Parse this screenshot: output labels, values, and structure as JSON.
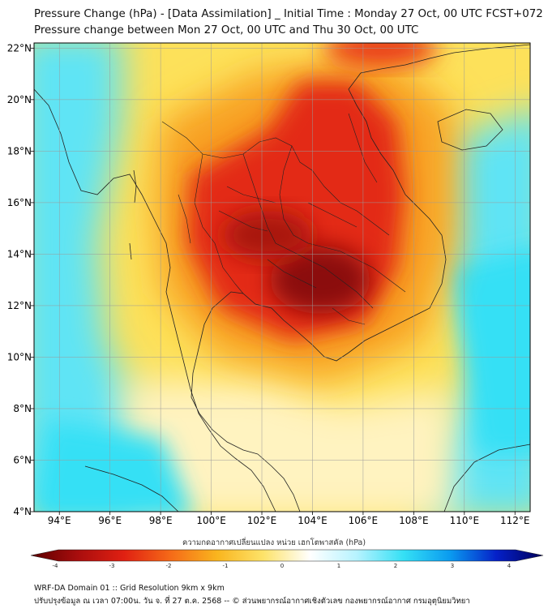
{
  "header": {
    "title": "Pressure Change (hPa) - [Data Assimilation] _ Initial Time : Monday 27 Oct, 00 UTC FCST+072",
    "subtitle": "Pressure change between Mon 27 Oct, 00 UTC and Thu 30 Oct, 00 UTC"
  },
  "map": {
    "lon_ticks": [
      "94°E",
      "96°E",
      "98°E",
      "100°E",
      "102°E",
      "104°E",
      "106°E",
      "108°E",
      "110°E",
      "112°E"
    ],
    "lon_values": [
      94,
      96,
      98,
      100,
      102,
      104,
      106,
      108,
      110,
      112
    ],
    "lat_ticks": [
      "22°N",
      "20°N",
      "18°N",
      "16°N",
      "14°N",
      "12°N",
      "10°N",
      "8°N",
      "6°N",
      "4°N"
    ],
    "lat_values": [
      22,
      20,
      18,
      16,
      14,
      12,
      10,
      8,
      6,
      4
    ],
    "lon_range": [
      93,
      112.6
    ],
    "lat_range": [
      4,
      22.2
    ],
    "colors": {
      "deep_red": "#8b0a0a",
      "red": "#e02012",
      "orange": "#f5761a",
      "yellow": "#fbd21e",
      "pale": "#fff6c8",
      "cyan": "#3fdff5",
      "coast": "#222222"
    }
  },
  "colorbar": {
    "label": "ความกดอากาศเปลี่ยนแปลง หน่วย เฮกโตพาสคัล (hPa)",
    "ticks": [
      "-4",
      "-3",
      "-2",
      "-1",
      "0",
      "1",
      "2",
      "3",
      "4"
    ],
    "values": [
      -4,
      -3,
      -2,
      -1,
      0,
      1,
      2,
      3,
      4
    ],
    "stops": [
      "#5a0000",
      "#a80d0d",
      "#e02012",
      "#f56a18",
      "#f9b51e",
      "#fde36a",
      "#ffffff",
      "#b6f3ff",
      "#35e0f5",
      "#0a9bf0",
      "#0520c8",
      "#00005a"
    ]
  },
  "footer": {
    "line1": "WRF-DA Domain 01 :: Grid Resolution 9km x 9km",
    "line2": "ปรับปรุงข้อมูล ณ เวลา 07:00น. วัน จ. ที่ 27 ต.ค. 2568 -- © ส่วนพยากรณ์อากาศเชิงตัวเลข กองพยากรณ์อากาศ กรมอุตุนิยมวิทยา"
  }
}
